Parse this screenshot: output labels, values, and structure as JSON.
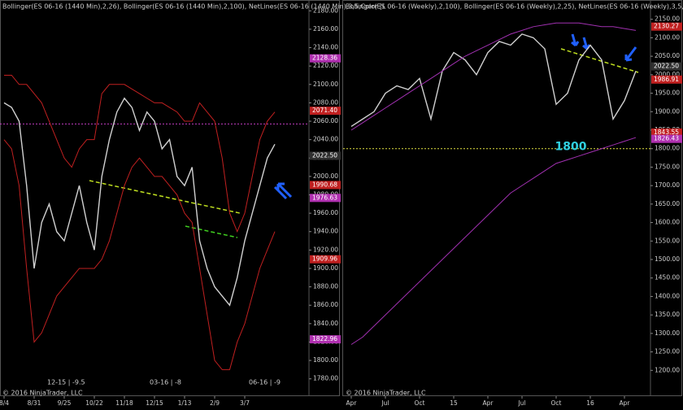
{
  "chart_data": [
    {
      "type": "line",
      "title": "Bollinger(ES 06-16 (1440 Min),2,26), Bollinger(ES 06-16 (1440 Min),2,100), NetLines(ES 06-16 (1440 Min),3,5,Color [L",
      "categories": [
        "8/4",
        null,
        null,
        null,
        "8/31",
        null,
        null,
        null,
        "9/25",
        null,
        null,
        null,
        "10/22",
        null,
        null,
        null,
        "11/18",
        null,
        null,
        null,
        "12/15",
        null,
        null,
        null,
        "1/13",
        null,
        null,
        null,
        "2/9",
        null,
        null,
        null,
        "3/7",
        null,
        null,
        null,
        null
      ],
      "series": [
        {
          "color": "#d0d0d0",
          "values": [
            2080,
            2075,
            2060,
            1990,
            1900,
            1950,
            1970,
            1940,
            1930,
            1960,
            1990,
            1950,
            1920,
            2000,
            2040,
            2070,
            2085,
            2075,
            2050,
            2070,
            2060,
            2030,
            2040,
            2000,
            1990,
            2010,
            1930,
            1900,
            1880,
            1870,
            1860,
            1890,
            1930,
            1960,
            1990,
            2020,
            2035
          ]
        },
        {
          "color": "#c02020",
          "values": [
            2110,
            2110,
            2100,
            2100,
            2090,
            2080,
            2060,
            2040,
            2020,
            2010,
            2030,
            2040,
            2040,
            2090,
            2100,
            2100,
            2100,
            2095,
            2090,
            2085,
            2080,
            2080,
            2075,
            2070,
            2060,
            2060,
            2080,
            2070,
            2060,
            2020,
            1960,
            1940,
            1960,
            2000,
            2040,
            2060,
            2070
          ]
        },
        {
          "color": "#c02020",
          "values": [
            2040,
            2030,
            1990,
            1900,
            1820,
            1830,
            1850,
            1870,
            1880,
            1890,
            1900,
            1900,
            1900,
            1910,
            1930,
            1960,
            1990,
            2010,
            2020,
            2010,
            2000,
            2000,
            1990,
            1980,
            1960,
            1950,
            1900,
            1850,
            1800,
            1790,
            1790,
            1820,
            1840,
            1870,
            1900,
            1920,
            1940
          ]
        }
      ],
      "ylim": [
        1770,
        2190
      ],
      "yticks": [
        {
          "value": 1780,
          "label": "1780.00"
        },
        {
          "value": 1800,
          "label": "1800.00"
        },
        {
          "value": 1820,
          "label": "1820.00"
        },
        {
          "value": 1840,
          "label": "1840.00"
        },
        {
          "value": 1860,
          "label": "1860.00"
        },
        {
          "value": 1880,
          "label": "1880.00"
        },
        {
          "value": 1900,
          "label": "1900.00"
        },
        {
          "value": 1920,
          "label": "1920.00"
        },
        {
          "value": 1940,
          "label": "1940.00"
        },
        {
          "value": 1960,
          "label": "1960.00"
        },
        {
          "value": 1980,
          "label": "1980.00"
        },
        {
          "value": 2000,
          "label": "2000.00"
        },
        {
          "value": 2020,
          "label": "2020.00"
        },
        {
          "value": 2040,
          "label": "2040.00"
        },
        {
          "value": 2060,
          "label": "2060.00"
        },
        {
          "value": 2080,
          "label": "2080.00"
        },
        {
          "value": 2100,
          "label": "2100.00"
        },
        {
          "value": 2120,
          "label": "2120.00"
        },
        {
          "value": 2140,
          "label": "2140.00"
        },
        {
          "value": 2160,
          "label": "2160.00"
        },
        {
          "value": 2180,
          "label": "2180.00"
        }
      ],
      "price_markers": [
        {
          "value": 2128.36,
          "color": "#b030b0"
        },
        {
          "value": 2071.4,
          "label": "2071.40",
          "color": "#c02020"
        },
        {
          "value": 2022.5,
          "label": "2022.50",
          "color": "#303030"
        },
        {
          "value": 1990.68,
          "color": "#c02020"
        },
        {
          "value": 1976.63,
          "color": "#b030b0"
        },
        {
          "value": 1909.96,
          "color": "#c02020"
        },
        {
          "value": 1822.96,
          "color": "#b030b0"
        }
      ],
      "hlines": [
        {
          "value": 2057,
          "color": "#c03cc0"
        }
      ],
      "footer": "© 2016 NinjaTrader, LLC",
      "contract_notes": [
        "12-15 | -9.5",
        "03-16 | -8",
        "06-16 | -9"
      ]
    },
    {
      "type": "line",
      "title": "Bollinger(ES 06-16 (Weekly),2,100), Bollinger(ES 06-16 (Weekly),2,25), NetLines(ES 06-16 (Weekly),3,5,Color [Line]",
      "categories": [
        "Apr",
        null,
        null,
        "Jul",
        null,
        null,
        "Oct",
        null,
        null,
        "15",
        null,
        null,
        "Apr",
        null,
        null,
        "Jul",
        null,
        null,
        "Oct",
        null,
        null,
        "16",
        null,
        null,
        "Apr",
        null
      ],
      "series": [
        {
          "color": "#d0d0d0",
          "values": [
            1860,
            1880,
            1900,
            1950,
            1970,
            1960,
            1990,
            1880,
            2010,
            2060,
            2040,
            2000,
            2060,
            2090,
            2080,
            2110,
            2100,
            2070,
            1920,
            1950,
            2040,
            2080,
            2040,
            1880,
            1930,
            2010
          ]
        },
        {
          "color": "#a030b0",
          "values": [
            1850,
            1870,
            1890,
            1910,
            1930,
            1950,
            1970,
            1990,
            2010,
            2030,
            2050,
            2065,
            2080,
            2095,
            2110,
            2120,
            2130,
            2135,
            2140,
            2140,
            2140,
            2135,
            2130,
            2130,
            2125,
            2120
          ]
        },
        {
          "color": "#a030b0",
          "values": [
            1270,
            1290,
            1320,
            1350,
            1380,
            1410,
            1440,
            1470,
            1500,
            1530,
            1560,
            1590,
            1620,
            1650,
            1680,
            1700,
            1720,
            1740,
            1760,
            1770,
            1780,
            1790,
            1800,
            1810,
            1820,
            1830
          ]
        }
      ],
      "ylim": [
        1150,
        2200
      ],
      "yticks": [
        {
          "value": 1200,
          "label": "1200.00"
        },
        {
          "value": 1250,
          "label": "1250.00"
        },
        {
          "value": 1300,
          "label": "1300.00"
        },
        {
          "value": 1350,
          "label": "1350.00"
        },
        {
          "value": 1400,
          "label": "1400.00"
        },
        {
          "value": 1450,
          "label": "1450.00"
        },
        {
          "value": 1500,
          "label": "1500.00"
        },
        {
          "value": 1550,
          "label": "1550.00"
        },
        {
          "value": 1600,
          "label": "1600.00"
        },
        {
          "value": 1650,
          "label": "1650.00"
        },
        {
          "value": 1700,
          "label": "1700.00"
        },
        {
          "value": 1750,
          "label": "1750.00"
        },
        {
          "value": 1800,
          "label": "1800.00"
        },
        {
          "value": 1850,
          "label": "1850.00"
        },
        {
          "value": 1900,
          "label": "1900.00"
        },
        {
          "value": 1950,
          "label": "1950.00"
        },
        {
          "value": 2000,
          "label": "2000.00"
        },
        {
          "value": 2050,
          "label": "2050.00"
        },
        {
          "value": 2100,
          "label": "2100.00"
        },
        {
          "value": 2150,
          "label": "2150.00"
        }
      ],
      "price_markers": [
        {
          "value": 2130.27,
          "color": "#c02020"
        },
        {
          "value": 2022.5,
          "label": "2022.50",
          "color": "#303030"
        },
        {
          "value": 1986.91,
          "color": "#c02020"
        },
        {
          "value": 1843.55,
          "color": "#c02020"
        },
        {
          "value": 1826.43,
          "color": "#b030b0"
        }
      ],
      "hlines": [
        {
          "value": 1800,
          "color": "#e0e040"
        }
      ],
      "annotation": "1800",
      "footer": "© 2016 NinjaTrader, LLC"
    }
  ]
}
